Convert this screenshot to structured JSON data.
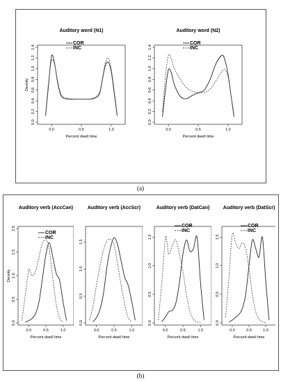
{
  "captions": {
    "a": "(a)",
    "b": "(b)"
  },
  "legend": {
    "cor": "COR",
    "inc": "INC"
  },
  "chart_data": [
    {
      "type": "line",
      "title": "Auditory word (N1)",
      "xlabel": "Percent dwell time",
      "ylabel": "Density",
      "xlim": [
        -0.2,
        1.2
      ],
      "ylim": [
        0,
        1.4
      ],
      "xticks": [
        "0.0",
        "0.5",
        "1.0"
      ],
      "yticks": [
        "0.0",
        "0.2",
        "0.4",
        "0.6",
        "0.8",
        "1.0",
        "1.2",
        "1.4"
      ],
      "series": [
        {
          "name": "COR",
          "style": "solid",
          "x": [
            -0.1,
            -0.05,
            0,
            0.05,
            0.1,
            0.15,
            0.2,
            0.3,
            0.4,
            0.5,
            0.6,
            0.7,
            0.8,
            0.85,
            0.9,
            0.95,
            1.0,
            1.05,
            1.1
          ],
          "y": [
            0.12,
            0.7,
            1.24,
            1.1,
            0.75,
            0.52,
            0.45,
            0.43,
            0.43,
            0.43,
            0.43,
            0.44,
            0.52,
            0.78,
            1.05,
            1.12,
            0.95,
            0.55,
            0.12
          ]
        },
        {
          "name": "INC",
          "style": "dashed",
          "x": [
            -0.1,
            -0.05,
            0,
            0.05,
            0.1,
            0.15,
            0.2,
            0.3,
            0.4,
            0.5,
            0.6,
            0.7,
            0.8,
            0.85,
            0.9,
            0.95,
            1.0,
            1.05,
            1.1
          ],
          "y": [
            0.15,
            0.75,
            1.15,
            1.08,
            0.78,
            0.55,
            0.47,
            0.44,
            0.43,
            0.43,
            0.43,
            0.45,
            0.55,
            0.8,
            1.1,
            1.2,
            1.0,
            0.6,
            0.15
          ]
        }
      ]
    },
    {
      "type": "line",
      "title": "Auditory word (N2)",
      "xlabel": "Percent dwell time",
      "ylabel": "",
      "xlim": [
        -0.2,
        1.2
      ],
      "ylim": [
        0,
        1.4
      ],
      "xticks": [
        "0.0",
        "0.5",
        "1.0"
      ],
      "yticks": [
        "0.0",
        "0.2",
        "0.4",
        "0.6",
        "0.8",
        "1.0",
        "1.2",
        "1.4"
      ],
      "series": [
        {
          "name": "COR",
          "style": "solid",
          "x": [
            -0.1,
            -0.05,
            0,
            0.05,
            0.1,
            0.2,
            0.3,
            0.4,
            0.5,
            0.6,
            0.7,
            0.8,
            0.9,
            0.95,
            1.0,
            1.05,
            1.1
          ],
          "y": [
            0.1,
            0.6,
            0.98,
            0.92,
            0.7,
            0.48,
            0.44,
            0.5,
            0.55,
            0.6,
            0.8,
            1.1,
            1.25,
            1.15,
            0.9,
            0.5,
            0.1
          ]
        },
        {
          "name": "INC",
          "style": "dashed",
          "x": [
            -0.1,
            -0.05,
            0,
            0.05,
            0.1,
            0.2,
            0.3,
            0.4,
            0.5,
            0.6,
            0.7,
            0.8,
            0.9,
            0.95,
            1.0,
            1.05,
            1.1
          ],
          "y": [
            0.2,
            0.85,
            1.25,
            1.18,
            1.0,
            0.8,
            0.65,
            0.58,
            0.55,
            0.56,
            0.62,
            0.78,
            0.95,
            0.98,
            0.85,
            0.5,
            0.15
          ]
        }
      ]
    },
    {
      "type": "line",
      "title": "Auditory verb (AccCan)",
      "xlabel": "Percent dwell time",
      "ylabel": "Density",
      "xlim": [
        -0.25,
        1.25
      ],
      "ylim": [
        0,
        2.0
      ],
      "xticks": [
        "0.0",
        "0.5",
        "1.0"
      ],
      "yticks": [
        "0.0",
        "0.5",
        "1.0",
        "1.5",
        "2.0"
      ],
      "series": [
        {
          "name": "COR",
          "style": "solid",
          "x": [
            -0.1,
            0,
            0.1,
            0.2,
            0.3,
            0.4,
            0.5,
            0.6,
            0.7,
            0.8,
            0.9,
            1.0,
            1.1
          ],
          "y": [
            0.02,
            0.05,
            0.1,
            0.2,
            0.45,
            0.95,
            1.45,
            1.7,
            1.4,
            1.05,
            0.9,
            0.45,
            0.05
          ]
        },
        {
          "name": "INC",
          "style": "dashed",
          "x": [
            -0.2,
            -0.1,
            0,
            0.05,
            0.1,
            0.2,
            0.3,
            0.4,
            0.5,
            0.55,
            0.6,
            0.7,
            0.8,
            0.9,
            1.0
          ],
          "y": [
            0.05,
            0.6,
            1.12,
            1.08,
            1.0,
            1.1,
            1.4,
            1.7,
            1.75,
            1.72,
            1.55,
            0.95,
            0.4,
            0.1,
            0.02
          ]
        }
      ]
    },
    {
      "type": "line",
      "title": "Auditory verb (AccScr)",
      "xlabel": "Percent dwell time",
      "ylabel": "",
      "xlim": [
        -0.25,
        1.25
      ],
      "ylim": [
        0,
        1.75
      ],
      "xticks": [
        "0.0",
        "0.5",
        "1.0"
      ],
      "yticks": [
        "0.0",
        "0.5",
        "1.0",
        "1.5"
      ],
      "series": [
        {
          "name": "COR",
          "style": "solid",
          "x": [
            -0.1,
            0,
            0.1,
            0.2,
            0.3,
            0.4,
            0.5,
            0.6,
            0.7,
            0.8,
            0.9,
            1.0,
            1.1
          ],
          "y": [
            0.02,
            0.1,
            0.25,
            0.55,
            1.05,
            1.4,
            1.58,
            1.45,
            1.15,
            0.85,
            0.7,
            0.4,
            0.05
          ]
        },
        {
          "name": "INC",
          "style": "dashed",
          "x": [
            -0.2,
            -0.1,
            0,
            0.1,
            0.2,
            0.3,
            0.4,
            0.5,
            0.6,
            0.7,
            0.8,
            0.9,
            1.0
          ],
          "y": [
            0.05,
            0.3,
            0.7,
            1.05,
            1.35,
            1.52,
            1.55,
            1.45,
            1.1,
            0.7,
            0.35,
            0.1,
            0.02
          ]
        }
      ]
    },
    {
      "type": "line",
      "title": "Auditory verb (DatCan)",
      "xlabel": "Percent dwell time",
      "ylabel": "",
      "xlim": [
        -0.25,
        1.25
      ],
      "ylim": [
        0,
        1.65
      ],
      "xticks": [
        "0.0",
        "0.5",
        "1.0"
      ],
      "yticks": [
        "0.0",
        "0.5",
        "1.0",
        "1.5"
      ],
      "series": [
        {
          "name": "COR",
          "style": "solid",
          "x": [
            -0.1,
            0,
            0.1,
            0.2,
            0.3,
            0.4,
            0.5,
            0.6,
            0.7,
            0.8,
            0.9,
            1.0,
            1.1
          ],
          "y": [
            0.02,
            0.1,
            0.2,
            0.22,
            0.35,
            0.7,
            1.2,
            1.45,
            1.25,
            1.3,
            1.5,
            0.7,
            0.05
          ]
        },
        {
          "name": "INC",
          "style": "dashed",
          "x": [
            -0.2,
            -0.1,
            0,
            0.05,
            0.1,
            0.2,
            0.3,
            0.4,
            0.5,
            0.6,
            0.7,
            0.8,
            0.9,
            1.0
          ],
          "y": [
            0.05,
            0.7,
            1.48,
            1.4,
            1.2,
            1.35,
            1.45,
            1.2,
            0.9,
            0.5,
            0.2,
            0.06,
            0.02,
            0.01
          ]
        }
      ]
    },
    {
      "type": "line",
      "title": "Auditory verb (DatScr)",
      "xlabel": "Percent dwell time",
      "ylabel": "",
      "xlim": [
        -0.25,
        1.25
      ],
      "ylim": [
        0,
        1.65
      ],
      "xticks": [
        "0.0",
        "0.5",
        "1.0"
      ],
      "yticks": [
        "0.0",
        "0.5",
        "1.0",
        "1.5"
      ],
      "series": [
        {
          "name": "COR",
          "style": "solid",
          "x": [
            -0.1,
            0,
            0.1,
            0.2,
            0.3,
            0.4,
            0.5,
            0.6,
            0.7,
            0.8,
            0.9,
            1.0,
            1.1
          ],
          "y": [
            0.02,
            0.05,
            0.1,
            0.15,
            0.25,
            0.5,
            1.0,
            1.45,
            1.3,
            1.15,
            1.5,
            0.75,
            0.05
          ]
        },
        {
          "name": "INC",
          "style": "dashed",
          "x": [
            -0.2,
            -0.1,
            0,
            0.1,
            0.2,
            0.3,
            0.4,
            0.5,
            0.6,
            0.7,
            0.8,
            0.9,
            1.0
          ],
          "y": [
            0.1,
            0.8,
            1.55,
            1.4,
            1.3,
            1.4,
            1.3,
            0.95,
            0.5,
            0.2,
            0.07,
            0.02,
            0.01
          ]
        }
      ]
    }
  ]
}
